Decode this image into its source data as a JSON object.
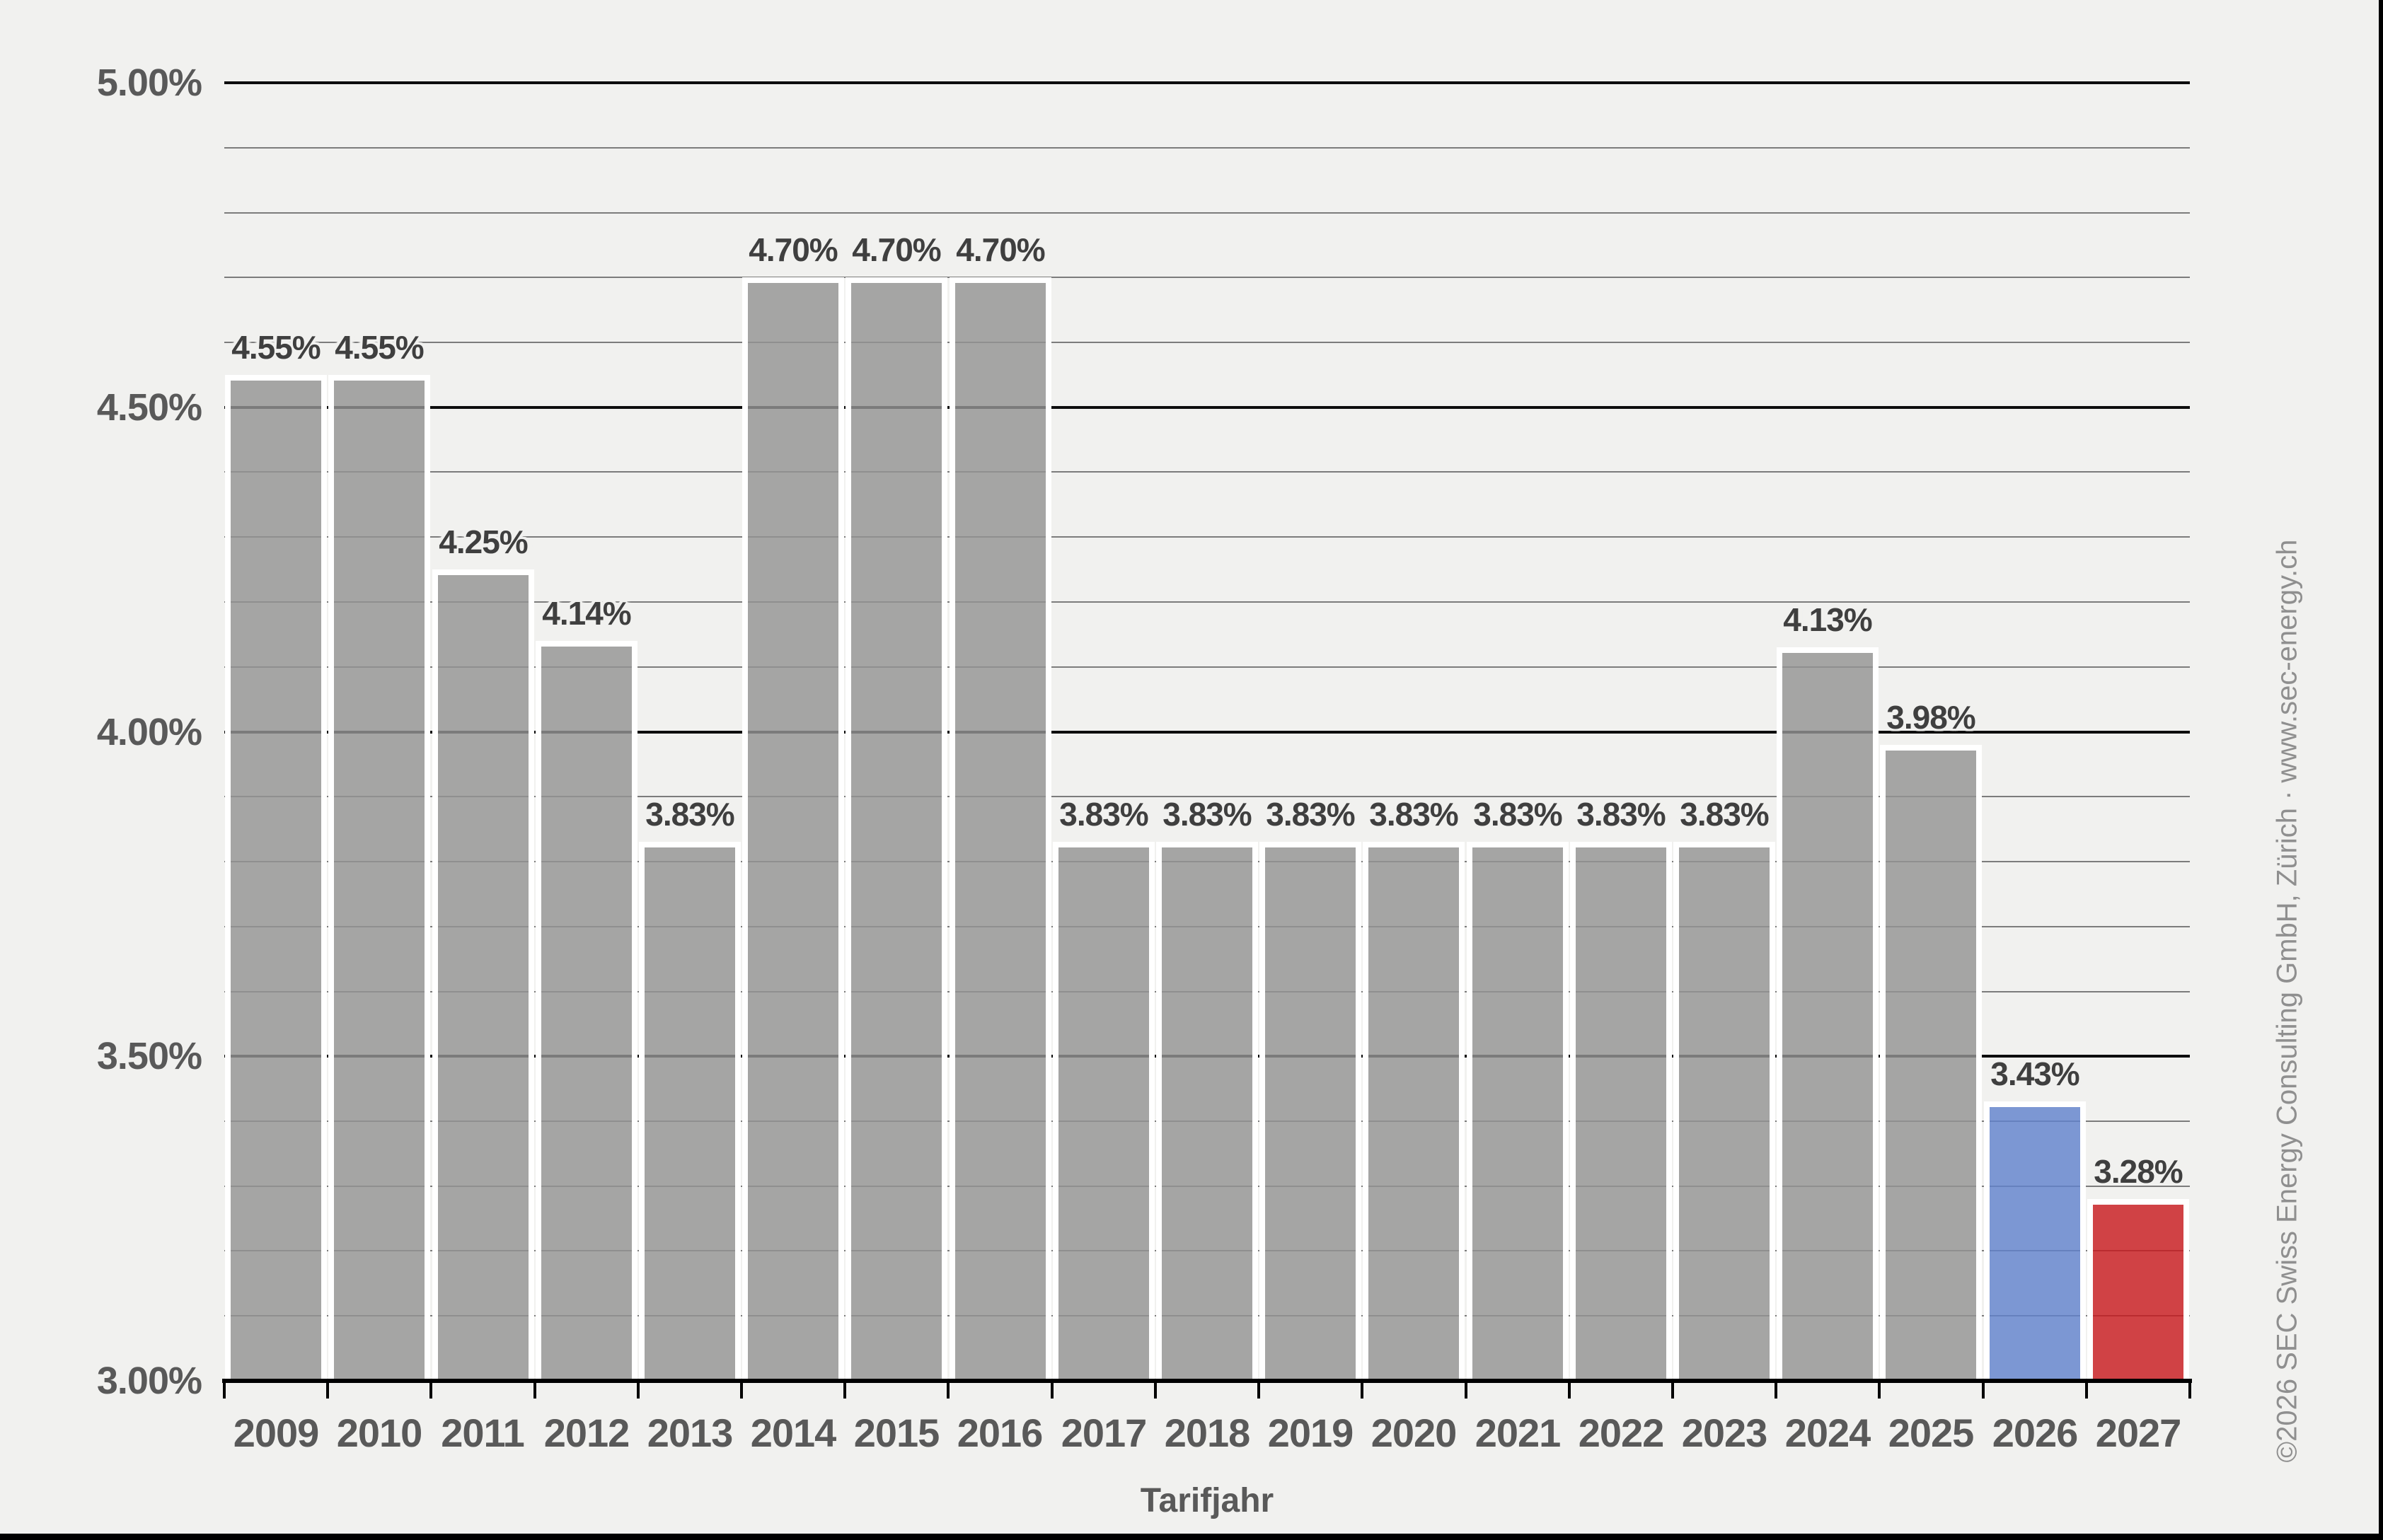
{
  "chart_data": {
    "type": "bar",
    "title": "",
    "xlabel": "Tarifjahr",
    "ylabel": "",
    "ylim": [
      3.0,
      5.0
    ],
    "y_major_step": 0.5,
    "y_minor_step": 0.1,
    "y_major_ticks": [
      3.0,
      3.5,
      4.0,
      4.5,
      5.0
    ],
    "y_tick_labels": [
      "3.00%",
      "3.50%",
      "4.00%",
      "4.50%",
      "5.00%"
    ],
    "grid": "horizontal, minor every 0.10%, major every 0.50%",
    "legend": null,
    "categories": [
      "2009",
      "2010",
      "2011",
      "2012",
      "2013",
      "2014",
      "2015",
      "2016",
      "2017",
      "2018",
      "2019",
      "2020",
      "2021",
      "2022",
      "2023",
      "2024",
      "2025",
      "2026",
      "2027"
    ],
    "values": [
      4.55,
      4.55,
      4.25,
      4.14,
      3.83,
      4.7,
      4.7,
      4.7,
      3.83,
      3.83,
      3.83,
      3.83,
      3.83,
      3.83,
      3.83,
      4.13,
      3.98,
      3.43,
      3.28
    ],
    "bar_labels": [
      "4.55%",
      "4.55%",
      "4.25%",
      "4.14%",
      "3.83%",
      "4.70%",
      "4.70%",
      "4.70%",
      "3.83%",
      "3.83%",
      "3.83%",
      "3.83%",
      "3.83%",
      "3.83%",
      "3.83%",
      "4.13%",
      "3.98%",
      "3.43%",
      "3.28%"
    ],
    "bar_color_keys": [
      "gray",
      "gray",
      "gray",
      "gray",
      "gray",
      "gray",
      "gray",
      "gray",
      "gray",
      "gray",
      "gray",
      "gray",
      "gray",
      "gray",
      "gray",
      "gray",
      "gray",
      "blue",
      "red"
    ]
  },
  "colors": {
    "gray": "rgba(148,148,148,0.82)",
    "blue": "rgba(97,130,205,0.82)",
    "red": "rgba(200,27,32,0.82)",
    "gray_hex": "#a5a5a5",
    "blue_hex": "#7b96d3",
    "red_hex": "#cf4145",
    "background": "#f1f1ef",
    "axis_text": "#595959",
    "value_text": "#3f3f3f",
    "minor_grid": "#7c7c7c",
    "major_grid": "#0d0d0d",
    "copyright_text": "#8f8f8f"
  },
  "copyright": "©2026 SEC Swiss Energy Consulting GmbH, Zürich · www.sec-energy.ch"
}
